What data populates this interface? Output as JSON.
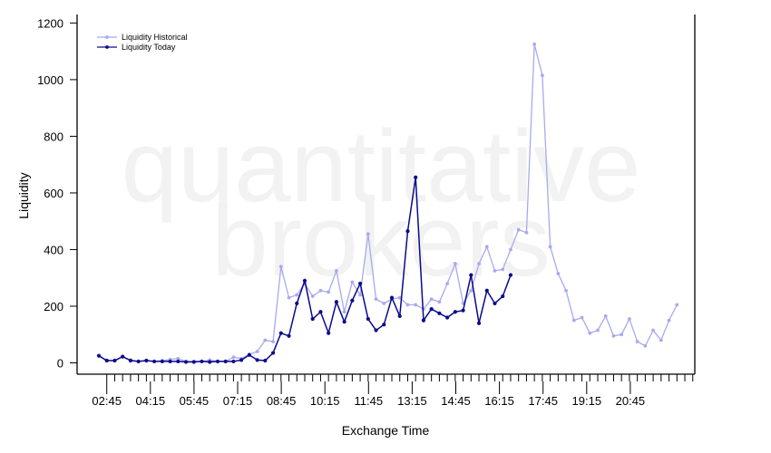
{
  "watermark": {
    "line1": "quantitative",
    "line2": "brokers"
  },
  "colors": {
    "historical": "#a9a9f0",
    "today": "#0a0a8c",
    "axis": "#000000",
    "watermark": "#f2f2f2"
  },
  "chart_data": {
    "type": "line",
    "xlabel": "Exchange Time",
    "ylabel": "Liquidity",
    "x_tick_labels": [
      "02:45",
      "04:15",
      "05:45",
      "07:15",
      "08:45",
      "10:15",
      "11:45",
      "13:15",
      "14:45",
      "16:15",
      "17:45",
      "19:15",
      "20:45"
    ],
    "y_ticks": [
      0,
      200,
      400,
      600,
      800,
      1000,
      1200
    ],
    "ylim": [
      -40,
      1230
    ],
    "legend_position": "top-left",
    "series": [
      {
        "name": "Liquidity Historical",
        "color": "#a9a9f0",
        "values": [
          25,
          8,
          8,
          22,
          10,
          5,
          8,
          5,
          8,
          12,
          15,
          5,
          5,
          5,
          10,
          5,
          5,
          20,
          15,
          30,
          40,
          80,
          75,
          340,
          230,
          240,
          280,
          235,
          255,
          250,
          325,
          180,
          285,
          240,
          455,
          225,
          210,
          225,
          230,
          205,
          205,
          190,
          225,
          215,
          280,
          350,
          210,
          255,
          350,
          410,
          325,
          330,
          400,
          470,
          460,
          1125,
          1015,
          410,
          315,
          255,
          150,
          160,
          105,
          115,
          165,
          95,
          100,
          155,
          75,
          60,
          115,
          80,
          150,
          205
        ]
      },
      {
        "name": "Liquidity Today",
        "color": "#0a0a8c",
        "values": [
          25,
          8,
          8,
          22,
          8,
          5,
          8,
          5,
          5,
          5,
          5,
          3,
          3,
          5,
          3,
          5,
          5,
          5,
          10,
          28,
          10,
          8,
          35,
          105,
          95,
          210,
          290,
          155,
          180,
          105,
          215,
          145,
          220,
          280,
          155,
          115,
          135,
          230,
          165,
          465,
          655,
          150,
          190,
          175,
          160,
          180,
          185,
          310,
          140,
          255,
          210,
          235,
          310
        ]
      }
    ]
  }
}
